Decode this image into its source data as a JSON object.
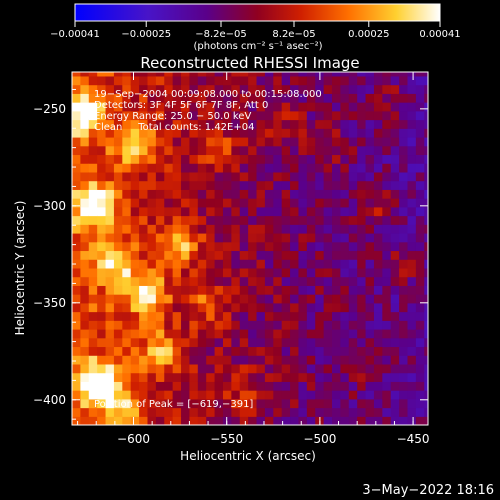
{
  "chart_data": {
    "type": "heatmap",
    "title": "Reconstructed RHESSI Image",
    "xlabel": "Heliocentric X (arcsec)",
    "ylabel": "Heliocentric Y (arcsec)",
    "xlim": [
      -633,
      -442
    ],
    "ylim": [
      -413,
      -231
    ],
    "x_ticks": [
      -600,
      -550,
      -500,
      -450
    ],
    "x_tick_labels": [
      "−600",
      "−550",
      "−500",
      "−450"
    ],
    "y_ticks": [
      -400,
      -350,
      -300,
      -250
    ],
    "y_tick_labels": [
      "−400",
      "−350",
      "−300",
      "−250"
    ],
    "colorbar": {
      "range": [
        -0.00041,
        0.00041
      ],
      "ticks": [
        -0.00041,
        -0.00025,
        -8.2e-05,
        8.2e-05,
        0.00025,
        0.00041
      ],
      "tick_labels": [
        "−0.00041",
        "−0.00025",
        "−8.2e−05",
        "8.2e−05",
        "0.00025",
        "0.00041"
      ],
      "unit_label": "(photons cm⁻² s⁻¹ asec⁻²)",
      "colormap": [
        "#0000ff",
        "#5a10b8",
        "#600090",
        "#a00020",
        "#e04000",
        "#ff9000",
        "#ffe040",
        "#ffffff"
      ]
    },
    "peak_position": [
      -619,
      -391
    ],
    "info_lines": [
      "19−Sep−2004 00:09:08.000 to 00:15:08.000",
      "Detectors: 3F 4F 5F 6F 7F 8F, Att 0",
      "Energy Range: 25.0 − 50.0 keV",
      "Clean     Total counts: 1.42E+04"
    ],
    "peak_label": "Position of Peak = [−619,−391]",
    "hot_spots": [
      {
        "x": -619,
        "y": -391,
        "value": 0.00041
      },
      {
        "x": -620,
        "y": -300,
        "value": 0.00036
      },
      {
        "x": -627,
        "y": -252,
        "value": 0.0003
      },
      {
        "x": -593,
        "y": -345,
        "value": 0.00032
      },
      {
        "x": -598,
        "y": -268,
        "value": 0.00028
      },
      {
        "x": -575,
        "y": -320,
        "value": 0.00026
      },
      {
        "x": -610,
        "y": -330,
        "value": 0.00027
      },
      {
        "x": -585,
        "y": -375,
        "value": 0.00025
      },
      {
        "x": -560,
        "y": -350,
        "value": 0.00018
      },
      {
        "x": -555,
        "y": -270,
        "value": 0.00015
      },
      {
        "x": -605,
        "y": -405,
        "value": 0.00024
      },
      {
        "x": -540,
        "y": -395,
        "value": 0.00012
      },
      {
        "x": -520,
        "y": -255,
        "value": 0.0001
      },
      {
        "x": -470,
        "y": -300,
        "value": 0.00012
      },
      {
        "x": -455,
        "y": -330,
        "value": 0.00011
      },
      {
        "x": -495,
        "y": -270,
        "value": 9e-05
      },
      {
        "x": -480,
        "y": -380,
        "value": 9e-05
      },
      {
        "x": -460,
        "y": -245,
        "value": 0.0001
      }
    ],
    "grid": false
  },
  "footer": {
    "date": "3−May−2022 18:16"
  }
}
